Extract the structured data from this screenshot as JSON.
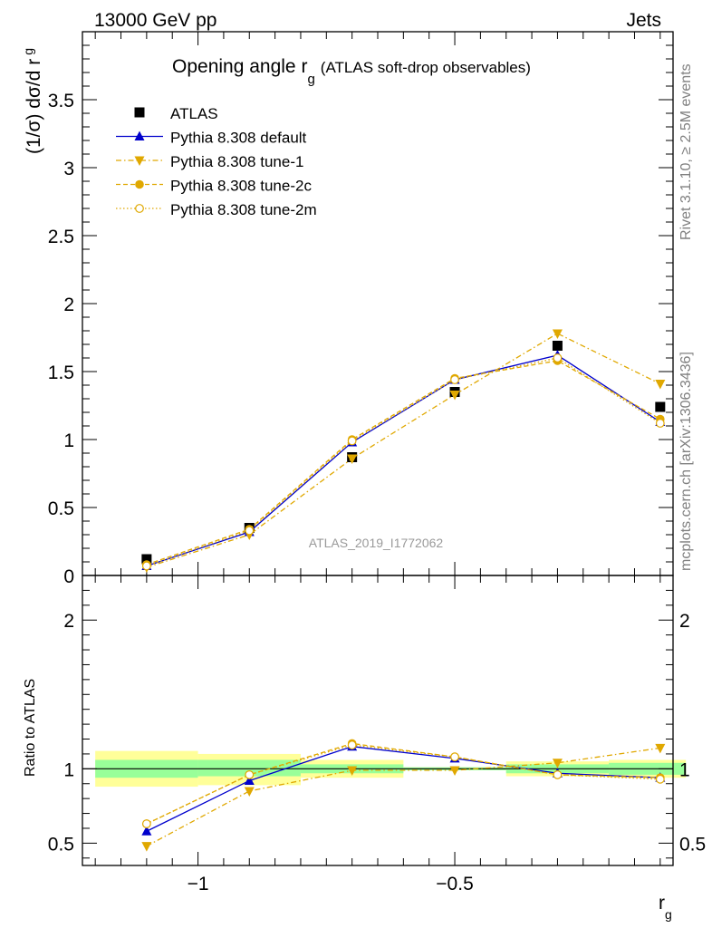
{
  "header": {
    "left": "13000 GeV pp",
    "right": "Jets"
  },
  "title": {
    "main": "Opening angle r",
    "sub": "g",
    "paren": "(ATLAS soft-drop observables)"
  },
  "side_labels": {
    "rivet": "Rivet 3.1.10, ≥ 2.5M events",
    "mcplots": "mcplots.cern.ch [arXiv:1306.3436]"
  },
  "watermark": "ATLAS_2019_I1772062",
  "axes": {
    "top_ylabel": "(1/σ) dσ/d r",
    "top_ylabel_sub": "g",
    "bottom_ylabel": "Ratio to ATLAS",
    "xlabel": "r",
    "xlabel_sub": "g"
  },
  "colors": {
    "data": "#000000",
    "default": "#0000cc",
    "tune": "#e0a800",
    "green_band": "#99ff99",
    "yellow_band": "#ffff99"
  },
  "chart_data": [
    {
      "type": "line",
      "panel": "main",
      "x": [
        -1.1,
        -0.9,
        -0.7,
        -0.5,
        -0.3,
        -0.1
      ],
      "xlim": [
        -1.225,
        -0.075
      ],
      "ylim": [
        0,
        4.0
      ],
      "y_ticks": [
        0,
        0.5,
        1,
        1.5,
        2,
        2.5,
        3,
        3.5
      ],
      "y_tick_labels": [
        "0",
        "0.5",
        "1",
        "1.5",
        "2",
        "2.5",
        "3",
        "3.5"
      ],
      "x_ticks": [
        -1,
        -0.5
      ],
      "x_tick_labels": [
        "−1",
        "−0.5"
      ],
      "legend_position": "top-left",
      "series": [
        {
          "name": "ATLAS",
          "marker": "square",
          "values": [
            0.12,
            0.35,
            0.87,
            1.35,
            1.69,
            1.24
          ]
        },
        {
          "name": "Pythia 8.308 default",
          "marker": "triangle-up",
          "values": [
            0.07,
            0.32,
            0.98,
            1.44,
            1.62,
            1.13
          ]
        },
        {
          "name": "Pythia 8.308 tune-1",
          "marker": "triangle-down",
          "values": [
            0.06,
            0.3,
            0.86,
            1.33,
            1.78,
            1.41
          ]
        },
        {
          "name": "Pythia 8.308 tune-2c",
          "marker": "circle",
          "values": [
            0.08,
            0.34,
            1.0,
            1.45,
            1.58,
            1.15
          ]
        },
        {
          "name": "Pythia 8.308 tune-2m",
          "marker": "circle-open",
          "values": [
            0.07,
            0.33,
            0.99,
            1.44,
            1.6,
            1.12
          ]
        }
      ]
    },
    {
      "type": "line",
      "panel": "ratio",
      "x": [
        -1.1,
        -0.9,
        -0.7,
        -0.5,
        -0.3,
        -0.1
      ],
      "xlim": [
        -1.225,
        -0.075
      ],
      "ylim": [
        0.35,
        2.3
      ],
      "y_ticks": [
        0.5,
        1,
        2
      ],
      "y_tick_labels": [
        "0.5",
        "1",
        "2"
      ],
      "x_ticks": [
        -1,
        -0.5
      ],
      "x_tick_labels": [
        "−1",
        "−0.5"
      ],
      "bands": {
        "bins": [
          [
            -1.2,
            -1.0
          ],
          [
            -1.0,
            -0.8
          ],
          [
            -0.8,
            -0.6
          ],
          [
            -0.6,
            -0.4
          ],
          [
            -0.4,
            -0.2
          ],
          [
            -0.2,
            -0.05
          ]
        ],
        "green": [
          [
            0.94,
            1.06
          ],
          [
            0.95,
            1.06
          ],
          [
            0.97,
            1.03
          ],
          [
            0.99,
            1.01
          ],
          [
            0.97,
            1.03
          ],
          [
            0.96,
            1.04
          ]
        ],
        "yellow": [
          [
            0.88,
            1.12
          ],
          [
            0.89,
            1.1
          ],
          [
            0.94,
            1.06
          ],
          [
            0.99,
            1.01
          ],
          [
            0.95,
            1.05
          ],
          [
            0.94,
            1.06
          ]
        ]
      },
      "series": [
        {
          "name": "Pythia 8.308 default",
          "marker": "triangle-up",
          "values": [
            0.58,
            0.92,
            1.15,
            1.07,
            0.97,
            0.94
          ]
        },
        {
          "name": "Pythia 8.308 tune-1",
          "marker": "triangle-down",
          "values": [
            0.48,
            0.85,
            0.99,
            0.99,
            1.04,
            1.14
          ]
        },
        {
          "name": "Pythia 8.308 tune-2c",
          "marker": "circle",
          "values": [
            0.63,
            0.96,
            1.17,
            1.08,
            0.96,
            0.94
          ]
        },
        {
          "name": "Pythia 8.308 tune-2m",
          "marker": "circle-open",
          "values": [
            0.63,
            0.96,
            1.16,
            1.08,
            0.96,
            0.93
          ]
        }
      ]
    }
  ]
}
